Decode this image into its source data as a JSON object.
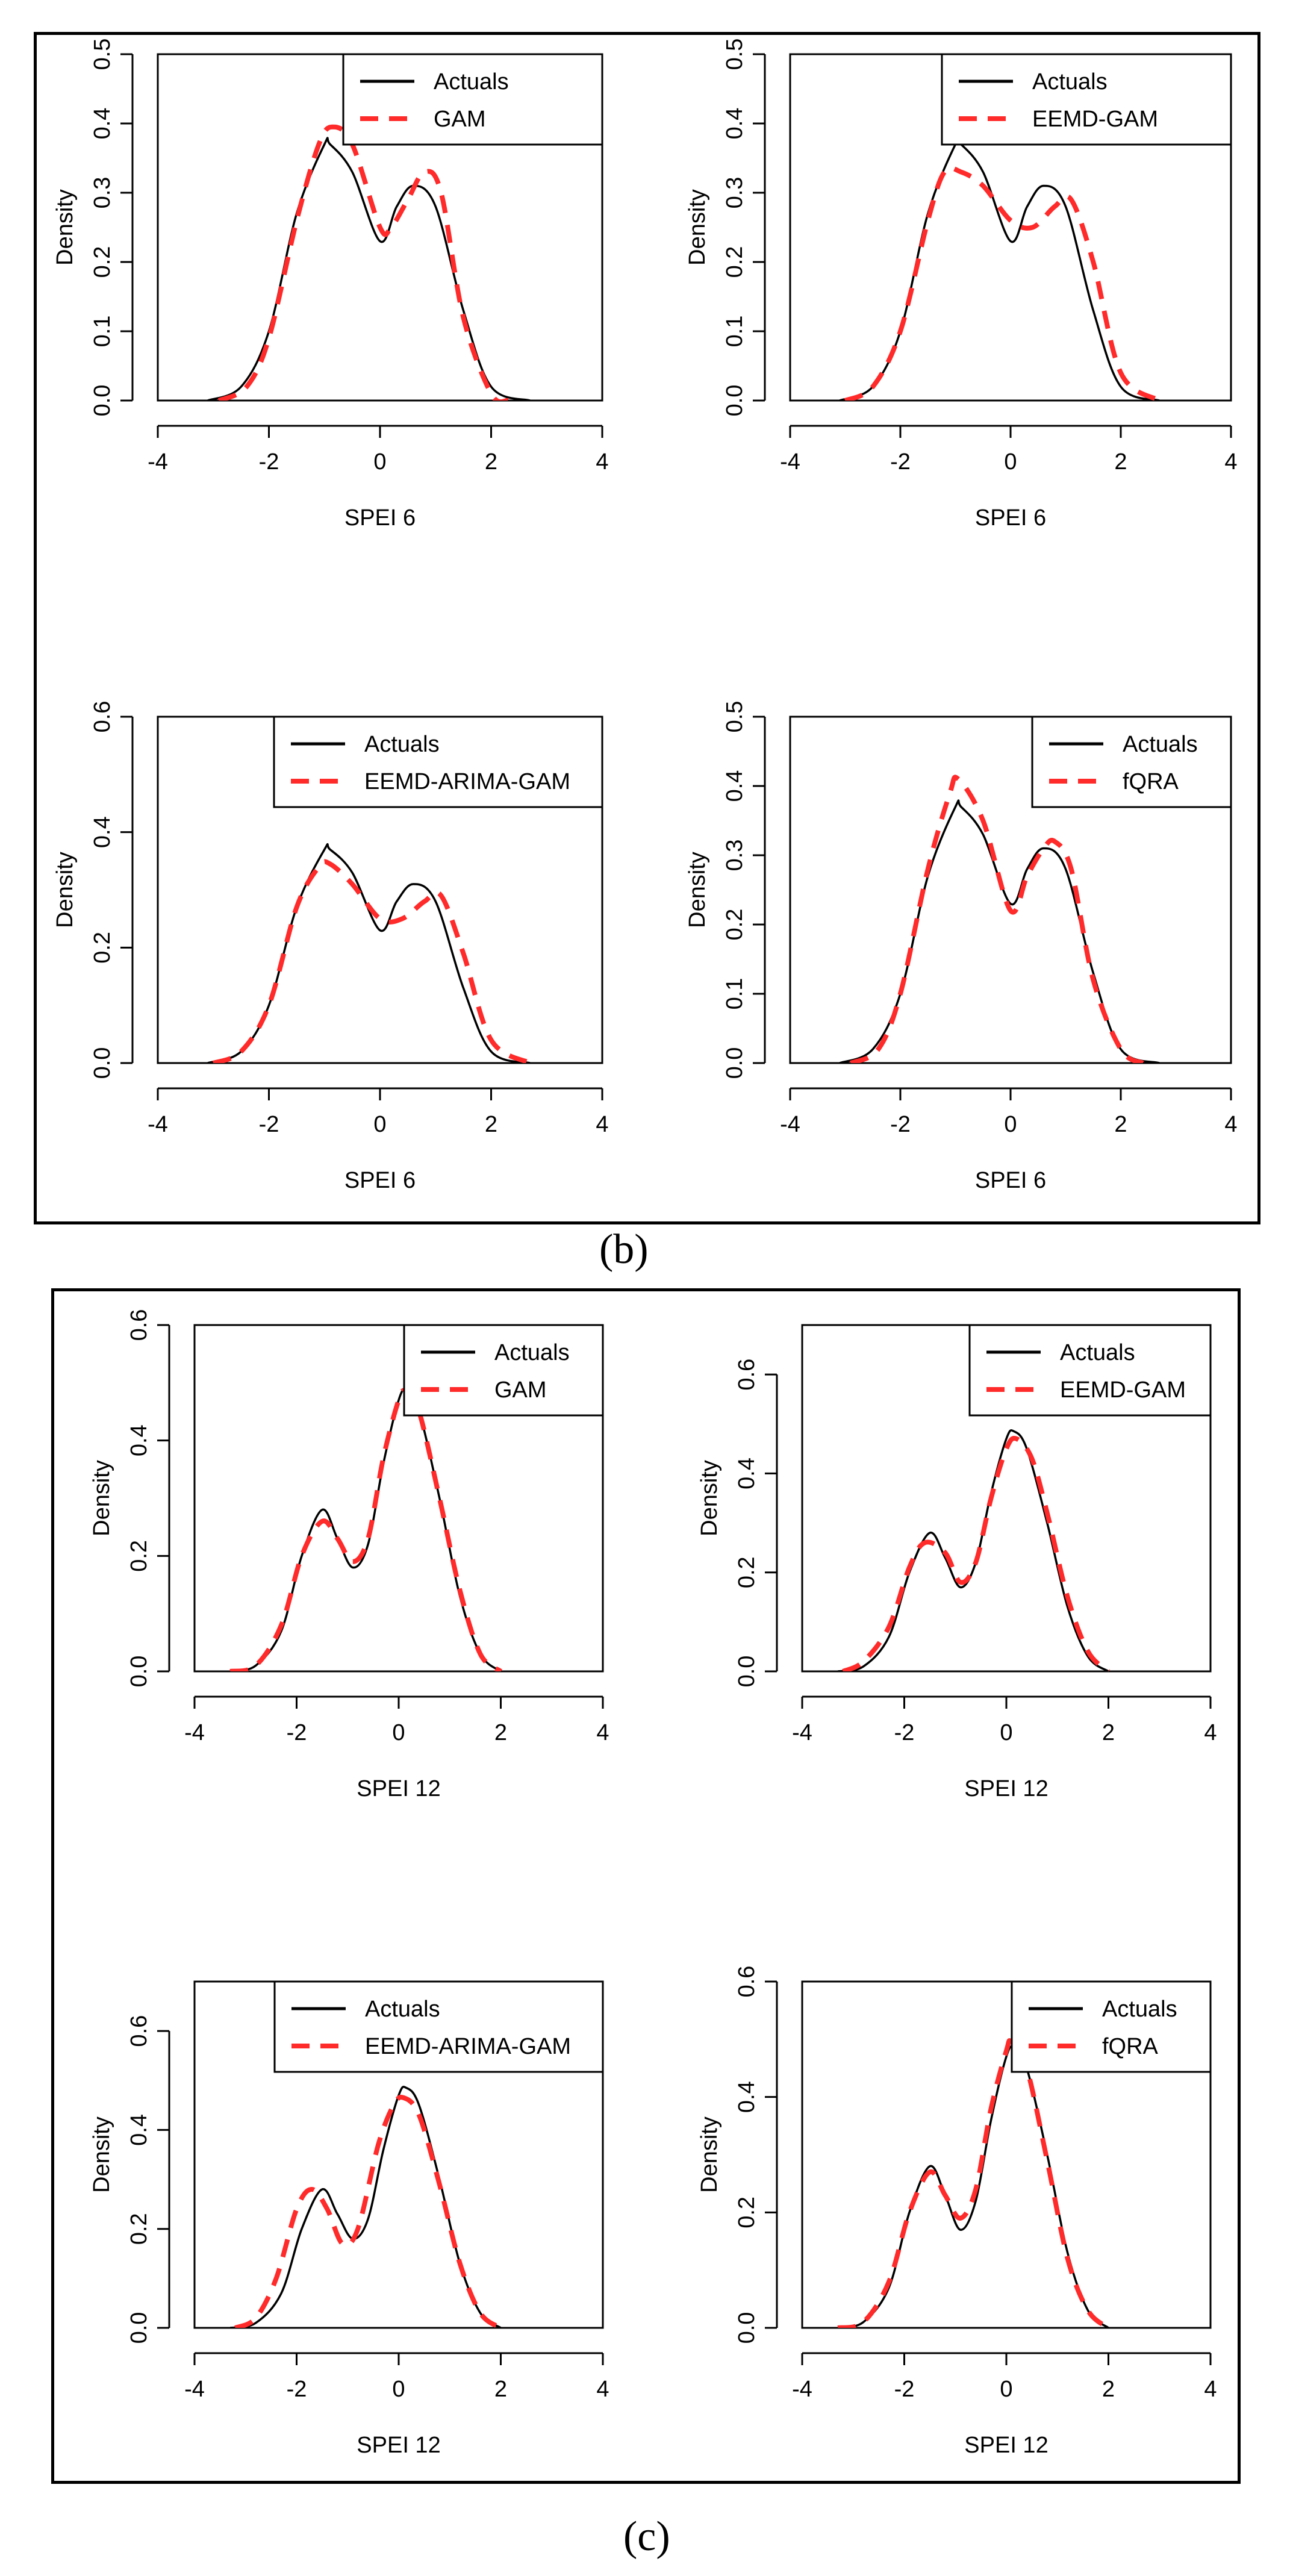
{
  "figure": {
    "captions": {
      "b": "(b)",
      "c": "(c)"
    }
  },
  "legend_actual_label": "Actuals",
  "chart_data": [
    {
      "id": "b1",
      "type": "line",
      "panel": "b",
      "title": "",
      "xlabel": "SPEI 6",
      "ylabel": "Density",
      "xlim": [
        -4,
        4
      ],
      "ylim": [
        0,
        0.5
      ],
      "xticks": [
        -4,
        -2,
        0,
        2,
        4
      ],
      "yticks": [
        0,
        0.1,
        0.2,
        0.3,
        0.4,
        0.5
      ],
      "ytick_labels": [
        "0.0",
        "0.1",
        "0.2",
        "0.3",
        "0.4",
        "0.5"
      ],
      "legend": [
        "Actuals",
        "GAM"
      ],
      "series": [
        {
          "name": "Actuals",
          "style": "solid",
          "color": "#000000",
          "x": [
            -3.1,
            -2.5,
            -2.0,
            -1.5,
            -1.0,
            -0.9,
            -0.5,
            0.0,
            0.3,
            0.6,
            1.0,
            1.5,
            2.0,
            2.7
          ],
          "y": [
            0.0,
            0.02,
            0.1,
            0.27,
            0.37,
            0.37,
            0.33,
            0.23,
            0.28,
            0.31,
            0.28,
            0.13,
            0.02,
            0.0
          ]
        },
        {
          "name": "GAM",
          "style": "dashed",
          "color": "#ff2a2a",
          "x": [
            -2.9,
            -2.4,
            -2.0,
            -1.5,
            -1.1,
            -0.85,
            -0.5,
            0.0,
            0.2,
            0.5,
            0.8,
            1.1,
            1.5,
            2.0,
            2.3
          ],
          "y": [
            0.0,
            0.02,
            0.09,
            0.26,
            0.37,
            0.395,
            0.37,
            0.25,
            0.25,
            0.29,
            0.33,
            0.3,
            0.12,
            0.01,
            0.0
          ]
        }
      ]
    },
    {
      "id": "b2",
      "type": "line",
      "panel": "b",
      "title": "",
      "xlabel": "SPEI 6",
      "ylabel": "Density",
      "xlim": [
        -4,
        4
      ],
      "ylim": [
        0,
        0.5
      ],
      "xticks": [
        -4,
        -2,
        0,
        2,
        4
      ],
      "yticks": [
        0,
        0.1,
        0.2,
        0.3,
        0.4,
        0.5
      ],
      "ytick_labels": [
        "0.0",
        "0.1",
        "0.2",
        "0.3",
        "0.4",
        "0.5"
      ],
      "legend": [
        "Actuals",
        "EEMD-GAM"
      ],
      "series": [
        {
          "name": "Actuals",
          "style": "solid",
          "color": "#000000",
          "x": [
            -3.1,
            -2.5,
            -2.0,
            -1.5,
            -1.0,
            -0.9,
            -0.5,
            0.0,
            0.3,
            0.6,
            1.0,
            1.5,
            2.0,
            2.7
          ],
          "y": [
            0.0,
            0.02,
            0.1,
            0.27,
            0.37,
            0.37,
            0.33,
            0.23,
            0.28,
            0.31,
            0.28,
            0.13,
            0.02,
            0.0
          ]
        },
        {
          "name": "EEMD-GAM",
          "style": "dashed",
          "color": "#ff2a2a",
          "x": [
            -3.0,
            -2.5,
            -2.0,
            -1.5,
            -1.2,
            -0.9,
            -0.5,
            0.0,
            0.4,
            0.8,
            1.1,
            1.5,
            2.0,
            2.7
          ],
          "y": [
            0.0,
            0.02,
            0.1,
            0.26,
            0.33,
            0.33,
            0.31,
            0.26,
            0.25,
            0.28,
            0.29,
            0.2,
            0.04,
            0.0
          ]
        }
      ]
    },
    {
      "id": "b3",
      "type": "line",
      "panel": "b",
      "title": "",
      "xlabel": "SPEI 6",
      "ylabel": "Density",
      "xlim": [
        -4,
        4
      ],
      "ylim": [
        0,
        0.6
      ],
      "xticks": [
        -4,
        -2,
        0,
        2,
        4
      ],
      "yticks": [
        0,
        0.2,
        0.4,
        0.6
      ],
      "ytick_labels": [
        "0.0",
        "0.2",
        "0.4",
        "0.6"
      ],
      "legend": [
        "Actuals",
        "EEMD-ARIMA-GAM"
      ],
      "series": [
        {
          "name": "Actuals",
          "style": "solid",
          "color": "#000000",
          "x": [
            -3.1,
            -2.5,
            -2.0,
            -1.5,
            -1.0,
            -0.9,
            -0.5,
            0.0,
            0.3,
            0.6,
            1.0,
            1.5,
            2.0,
            2.7
          ],
          "y": [
            0.0,
            0.02,
            0.1,
            0.27,
            0.37,
            0.37,
            0.33,
            0.23,
            0.28,
            0.31,
            0.28,
            0.13,
            0.02,
            0.0
          ]
        },
        {
          "name": "EEMD-ARIMA-GAM",
          "style": "dashed",
          "color": "#ff2a2a",
          "x": [
            -3.0,
            -2.5,
            -2.0,
            -1.5,
            -1.1,
            -0.9,
            -0.5,
            0.0,
            0.4,
            0.8,
            1.1,
            1.5,
            2.0,
            2.7
          ],
          "y": [
            0.0,
            0.02,
            0.1,
            0.27,
            0.34,
            0.345,
            0.31,
            0.25,
            0.25,
            0.28,
            0.29,
            0.19,
            0.04,
            0.0
          ]
        }
      ]
    },
    {
      "id": "b4",
      "type": "line",
      "panel": "b",
      "title": "",
      "xlabel": "SPEI 6",
      "ylabel": "Density",
      "xlim": [
        -4,
        4
      ],
      "ylim": [
        0,
        0.5
      ],
      "xticks": [
        -4,
        -2,
        0,
        2,
        4
      ],
      "yticks": [
        0,
        0.1,
        0.2,
        0.3,
        0.4,
        0.5
      ],
      "ytick_labels": [
        "0.0",
        "0.1",
        "0.2",
        "0.3",
        "0.4",
        "0.5"
      ],
      "legend": [
        "Actuals",
        "fQRA"
      ],
      "series": [
        {
          "name": "Actuals",
          "style": "solid",
          "color": "#000000",
          "x": [
            -3.1,
            -2.5,
            -2.0,
            -1.5,
            -1.0,
            -0.9,
            -0.5,
            0.0,
            0.3,
            0.6,
            1.0,
            1.5,
            2.0,
            2.7
          ],
          "y": [
            0.0,
            0.02,
            0.1,
            0.27,
            0.37,
            0.37,
            0.33,
            0.23,
            0.28,
            0.31,
            0.28,
            0.13,
            0.02,
            0.0
          ]
        },
        {
          "name": "fQRA",
          "style": "dashed",
          "color": "#ff2a2a",
          "x": [
            -2.9,
            -2.4,
            -2.0,
            -1.5,
            -1.1,
            -0.95,
            -0.5,
            0.0,
            0.3,
            0.6,
            0.8,
            1.1,
            1.5,
            2.0,
            2.4
          ],
          "y": [
            0.0,
            0.02,
            0.1,
            0.28,
            0.39,
            0.41,
            0.35,
            0.22,
            0.27,
            0.31,
            0.32,
            0.28,
            0.12,
            0.02,
            0.0
          ]
        }
      ]
    },
    {
      "id": "c1",
      "type": "line",
      "panel": "c",
      "title": "",
      "xlabel": "SPEI 12",
      "ylabel": "Density",
      "xlim": [
        -4,
        4
      ],
      "ylim": [
        0,
        0.6
      ],
      "xticks": [
        -4,
        -2,
        0,
        2,
        4
      ],
      "yticks": [
        0,
        0.2,
        0.4,
        0.6
      ],
      "ytick_labels": [
        "0.0",
        "0.2",
        "0.4",
        "0.6"
      ],
      "legend": [
        "Actuals",
        "GAM"
      ],
      "series": [
        {
          "name": "Actuals",
          "style": "solid",
          "color": "#000000",
          "x": [
            -3.3,
            -2.8,
            -2.3,
            -1.9,
            -1.5,
            -1.2,
            -0.9,
            -0.6,
            -0.3,
            0.0,
            0.15,
            0.4,
            0.8,
            1.2,
            1.6,
            2.0
          ],
          "y": [
            0.0,
            0.01,
            0.07,
            0.2,
            0.28,
            0.23,
            0.18,
            0.22,
            0.36,
            0.47,
            0.485,
            0.45,
            0.3,
            0.13,
            0.03,
            0.0
          ]
        },
        {
          "name": "GAM",
          "style": "dashed",
          "color": "#ff2a2a",
          "x": [
            -3.3,
            -2.8,
            -2.3,
            -1.9,
            -1.5,
            -1.2,
            -0.9,
            -0.6,
            -0.3,
            0.0,
            0.15,
            0.4,
            0.8,
            1.2,
            1.6,
            2.0
          ],
          "y": [
            0.0,
            0.01,
            0.08,
            0.2,
            0.26,
            0.23,
            0.19,
            0.23,
            0.37,
            0.47,
            0.485,
            0.45,
            0.3,
            0.14,
            0.03,
            0.0
          ]
        }
      ]
    },
    {
      "id": "c2",
      "type": "line",
      "panel": "c",
      "title": "",
      "xlabel": "SPEI 12",
      "ylabel": "Density",
      "xlim": [
        -4,
        4
      ],
      "ylim": [
        0,
        0.7
      ],
      "xticks": [
        -4,
        -2,
        0,
        2,
        4
      ],
      "yticks": [
        0,
        0.2,
        0.4,
        0.6
      ],
      "ytick_labels": [
        "0.0",
        "0.2",
        "0.4",
        "0.6"
      ],
      "legend": [
        "Actuals",
        "EEMD-GAM"
      ],
      "series": [
        {
          "name": "Actuals",
          "style": "solid",
          "color": "#000000",
          "x": [
            -3.3,
            -2.8,
            -2.3,
            -1.9,
            -1.5,
            -1.2,
            -0.9,
            -0.6,
            -0.3,
            0.0,
            0.15,
            0.4,
            0.8,
            1.2,
            1.6,
            2.0
          ],
          "y": [
            0.0,
            0.01,
            0.07,
            0.2,
            0.28,
            0.23,
            0.17,
            0.22,
            0.36,
            0.47,
            0.485,
            0.45,
            0.3,
            0.13,
            0.03,
            0.0
          ]
        },
        {
          "name": "EEMD-GAM",
          "style": "dashed",
          "color": "#ff2a2a",
          "x": [
            -3.2,
            -2.8,
            -2.3,
            -1.9,
            -1.6,
            -1.2,
            -0.9,
            -0.6,
            -0.3,
            0.0,
            0.2,
            0.5,
            0.8,
            1.2,
            1.6,
            2.0
          ],
          "y": [
            0.0,
            0.02,
            0.09,
            0.21,
            0.26,
            0.24,
            0.18,
            0.22,
            0.35,
            0.45,
            0.47,
            0.43,
            0.32,
            0.15,
            0.04,
            0.0
          ]
        }
      ]
    },
    {
      "id": "c3",
      "type": "line",
      "panel": "c",
      "title": "",
      "xlabel": "SPEI 12",
      "ylabel": "Density",
      "xlim": [
        -4,
        4
      ],
      "ylim": [
        0,
        0.7
      ],
      "xticks": [
        -4,
        -2,
        0,
        2,
        4
      ],
      "yticks": [
        0,
        0.2,
        0.4,
        0.6
      ],
      "ytick_labels": [
        "0.0",
        "0.2",
        "0.4",
        "0.6"
      ],
      "legend": [
        "Actuals",
        "EEMD-ARIMA-GAM"
      ],
      "series": [
        {
          "name": "Actuals",
          "style": "solid",
          "color": "#000000",
          "x": [
            -3.3,
            -2.8,
            -2.3,
            -1.9,
            -1.5,
            -1.2,
            -0.9,
            -0.6,
            -0.3,
            0.0,
            0.15,
            0.4,
            0.8,
            1.2,
            1.6,
            2.0
          ],
          "y": [
            0.0,
            0.01,
            0.07,
            0.2,
            0.28,
            0.23,
            0.18,
            0.22,
            0.36,
            0.47,
            0.485,
            0.45,
            0.3,
            0.13,
            0.03,
            0.0
          ]
        },
        {
          "name": "EEMD-ARIMA-GAM",
          "style": "dashed",
          "color": "#ff2a2a",
          "x": [
            -3.2,
            -2.8,
            -2.4,
            -2.0,
            -1.7,
            -1.4,
            -1.1,
            -0.8,
            -0.4,
            -0.1,
            0.1,
            0.4,
            0.8,
            1.2,
            1.6,
            2.0
          ],
          "y": [
            0.0,
            0.02,
            0.1,
            0.24,
            0.28,
            0.24,
            0.17,
            0.2,
            0.37,
            0.45,
            0.465,
            0.43,
            0.29,
            0.13,
            0.03,
            0.0
          ]
        }
      ]
    },
    {
      "id": "c4",
      "type": "line",
      "panel": "c",
      "title": "",
      "xlabel": "SPEI 12",
      "ylabel": "Density",
      "xlim": [
        -4,
        4
      ],
      "ylim": [
        0,
        0.6
      ],
      "xticks": [
        -4,
        -2,
        0,
        2,
        4
      ],
      "yticks": [
        0,
        0.2,
        0.4,
        0.6
      ],
      "ytick_labels": [
        "0.0",
        "0.2",
        "0.4",
        "0.6"
      ],
      "legend": [
        "Actuals",
        "fQRA"
      ],
      "series": [
        {
          "name": "Actuals",
          "style": "solid",
          "color": "#000000",
          "x": [
            -3.3,
            -2.8,
            -2.3,
            -1.9,
            -1.5,
            -1.2,
            -0.9,
            -0.6,
            -0.3,
            0.0,
            0.15,
            0.4,
            0.8,
            1.2,
            1.6,
            2.0
          ],
          "y": [
            0.0,
            0.01,
            0.07,
            0.2,
            0.28,
            0.23,
            0.17,
            0.22,
            0.36,
            0.47,
            0.485,
            0.45,
            0.3,
            0.13,
            0.03,
            0.0
          ]
        },
        {
          "name": "fQRA",
          "style": "dashed",
          "color": "#ff2a2a",
          "x": [
            -3.3,
            -2.8,
            -2.3,
            -1.9,
            -1.5,
            -1.2,
            -0.9,
            -0.6,
            -0.3,
            0.0,
            0.1,
            0.4,
            0.8,
            1.2,
            1.6,
            2.0
          ],
          "y": [
            0.0,
            0.01,
            0.08,
            0.2,
            0.27,
            0.23,
            0.19,
            0.24,
            0.38,
            0.48,
            0.495,
            0.45,
            0.29,
            0.12,
            0.03,
            0.0
          ]
        }
      ]
    }
  ]
}
